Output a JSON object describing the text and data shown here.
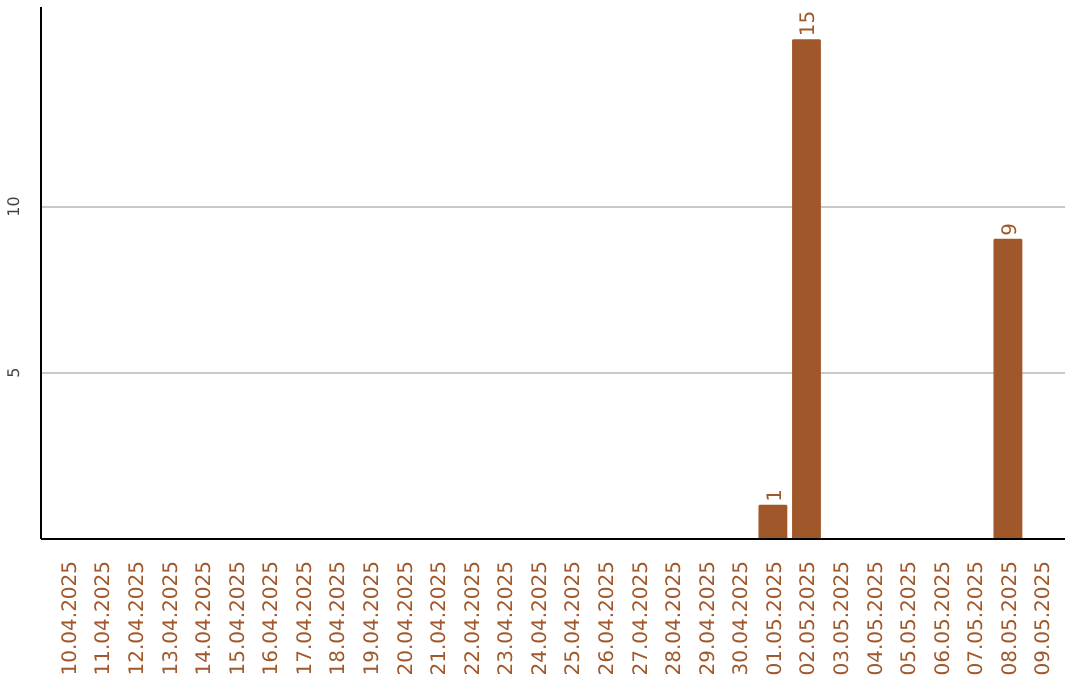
{
  "chart_data": {
    "type": "bar",
    "categories": [
      "10.04.2025",
      "11.04.2025",
      "12.04.2025",
      "13.04.2025",
      "14.04.2025",
      "15.04.2025",
      "16.04.2025",
      "17.04.2025",
      "18.04.2025",
      "19.04.2025",
      "20.04.2025",
      "21.04.2025",
      "22.04.2025",
      "23.04.2025",
      "24.04.2025",
      "25.04.2025",
      "26.04.2025",
      "27.04.2025",
      "28.04.2025",
      "29.04.2025",
      "30.04.2025",
      "01.05.2025",
      "02.05.2025",
      "03.05.2025",
      "04.05.2025",
      "05.05.2025",
      "06.05.2025",
      "07.05.2025",
      "08.05.2025",
      "09.05.2025"
    ],
    "values": [
      0,
      0,
      0,
      0,
      0,
      0,
      0,
      0,
      0,
      0,
      0,
      0,
      0,
      0,
      0,
      0,
      0,
      0,
      0,
      0,
      0,
      1,
      15,
      0,
      0,
      0,
      0,
      0,
      9,
      0
    ],
    "value_labels": [
      null,
      null,
      null,
      null,
      null,
      null,
      null,
      null,
      null,
      null,
      null,
      null,
      null,
      null,
      null,
      null,
      null,
      null,
      null,
      null,
      null,
      "1",
      "15",
      null,
      null,
      null,
      null,
      null,
      "9",
      null
    ],
    "color": "#a0582b",
    "ylim": [
      0,
      16
    ],
    "yticks": [
      5,
      10
    ],
    "grid": "y"
  }
}
